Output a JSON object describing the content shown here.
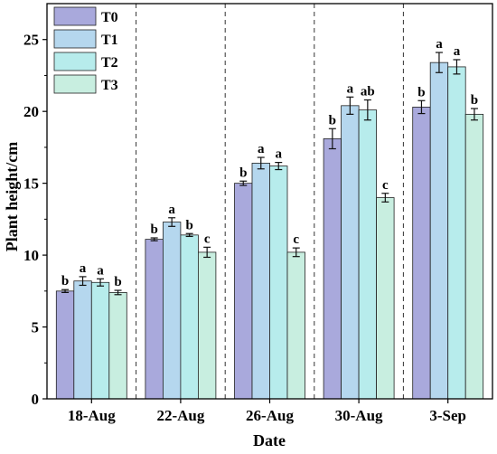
{
  "chart_data": {
    "type": "bar",
    "xlabel": "Date",
    "ylabel": "Plant height/cm",
    "ylim": [
      0,
      27.5
    ],
    "yticks": [
      0,
      5,
      10,
      15,
      20,
      25
    ],
    "categories": [
      "18-Aug",
      "22-Aug",
      "26-Aug",
      "30-Aug",
      "3-Sep"
    ],
    "grid": false,
    "legend_position": "top-left",
    "group_separators": "dashed",
    "series": [
      {
        "name": "T0",
        "color": "#a9a9dc",
        "values": [
          7.5,
          11.1,
          15.0,
          18.1,
          20.3
        ],
        "errors": [
          0.1,
          0.1,
          0.15,
          0.7,
          0.45
        ],
        "labels": [
          "b",
          "b",
          "b",
          "b",
          "b"
        ]
      },
      {
        "name": "T1",
        "color": "#b5d7ee",
        "values": [
          8.2,
          12.3,
          16.4,
          20.4,
          23.4
        ],
        "errors": [
          0.3,
          0.3,
          0.4,
          0.6,
          0.7
        ],
        "labels": [
          "a",
          "a",
          "a",
          "a",
          "a"
        ]
      },
      {
        "name": "T2",
        "color": "#b7ecec",
        "values": [
          8.1,
          11.4,
          16.2,
          20.1,
          23.1
        ],
        "errors": [
          0.25,
          0.1,
          0.25,
          0.7,
          0.5
        ],
        "labels": [
          "a",
          "b",
          "a",
          "ab",
          "a"
        ]
      },
      {
        "name": "T3",
        "color": "#c8eee0",
        "values": [
          7.4,
          10.2,
          10.2,
          14.0,
          19.8
        ],
        "errors": [
          0.15,
          0.35,
          0.3,
          0.3,
          0.4
        ],
        "labels": [
          "b",
          "c",
          "c",
          "c",
          "b"
        ]
      }
    ]
  }
}
